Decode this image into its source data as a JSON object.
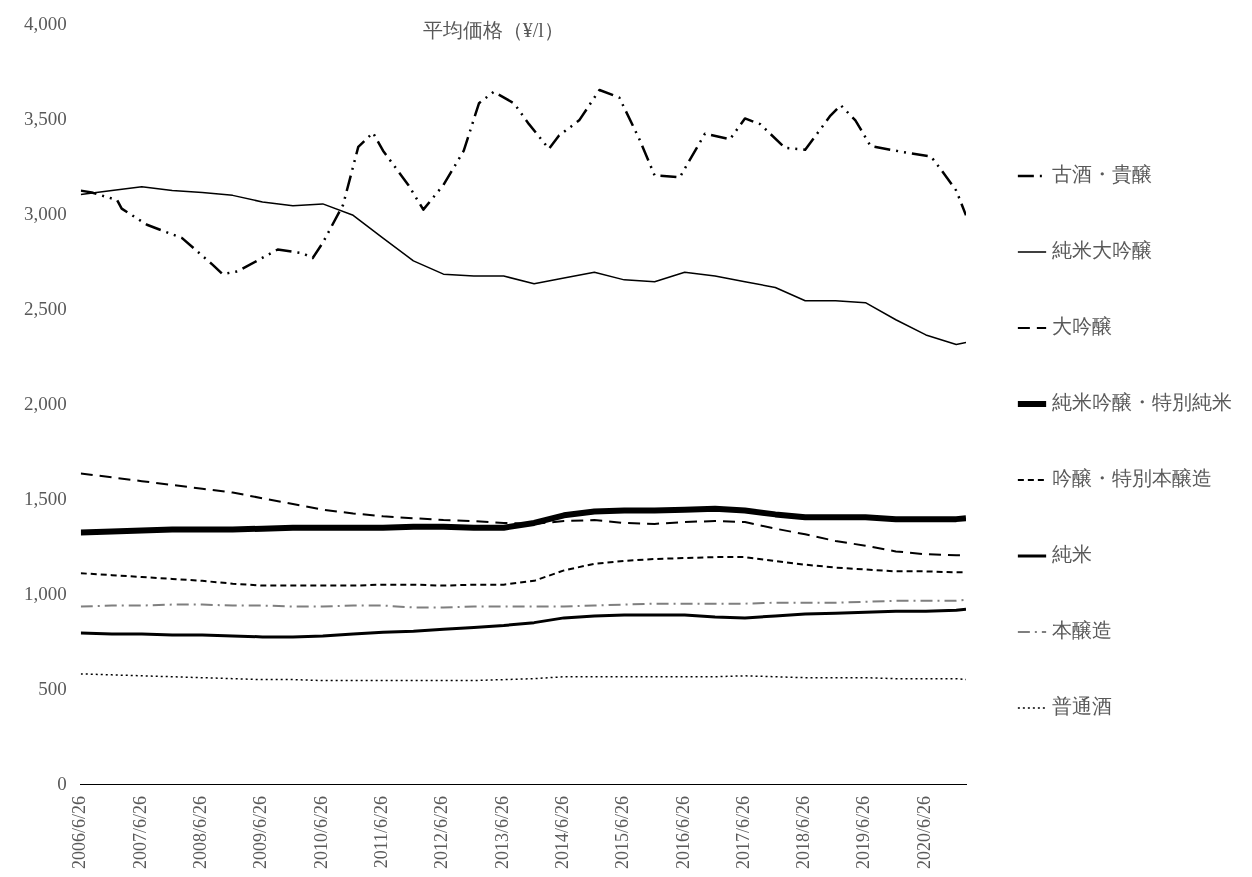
{
  "chart_data": {
    "type": "line",
    "title": "平均価格（¥/l）",
    "x": [
      "2006-06-26",
      "2007-01",
      "2007-07",
      "2008-01",
      "2008-07",
      "2009-01",
      "2009-07",
      "2010-01",
      "2010-07",
      "2011-01",
      "2011-07",
      "2012-01",
      "2012-07",
      "2013-01",
      "2013-07",
      "2014-01",
      "2014-07",
      "2015-01",
      "2015-07",
      "2016-01",
      "2016-07",
      "2017-01",
      "2017-07",
      "2018-01",
      "2018-07",
      "2019-01",
      "2019-07",
      "2020-01",
      "2020-07",
      "2021-01",
      "2021-03"
    ],
    "series": [
      {
        "name": "古酒・貴醸",
        "color": "#000000",
        "line_style": "dashdotdot",
        "x": [
          "2006-06-26",
          "2006-09",
          "2007-02",
          "2007-03",
          "2007-08",
          "2008-03",
          "2008-09",
          "2008-11",
          "2009-02",
          "2009-10",
          "2010-03",
          "2010-05",
          "2010-07",
          "2010-11",
          "2011-02",
          "2011-05",
          "2011-07",
          "2011-12",
          "2012-03",
          "2012-05",
          "2012-07",
          "2012-11",
          "2013-02",
          "2013-05",
          "2013-09",
          "2013-12",
          "2014-04",
          "2014-06",
          "2014-10",
          "2015-02",
          "2015-06",
          "2015-10",
          "2016-01",
          "2016-06",
          "2016-11",
          "2017-04",
          "2017-07",
          "2017-10",
          "2018-03",
          "2018-07",
          "2018-12",
          "2019-02",
          "2019-05",
          "2019-08",
          "2020-02",
          "2020-08",
          "2020-10",
          "2021-01",
          "2021-03"
        ],
        "values": [
          3130,
          3120,
          3080,
          3035,
          2950,
          2880,
          2740,
          2690,
          2705,
          2820,
          2800,
          2775,
          2855,
          3055,
          3360,
          3435,
          3340,
          3160,
          3030,
          3095,
          3160,
          3340,
          3590,
          3650,
          3590,
          3480,
          3350,
          3420,
          3500,
          3660,
          3620,
          3400,
          3210,
          3200,
          3430,
          3400,
          3510,
          3480,
          3355,
          3345,
          3525,
          3580,
          3500,
          3365,
          3335,
          3310,
          3240,
          3130,
          3000
        ]
      },
      {
        "name": "純米大吟醸",
        "color": "#000000",
        "line_style": "solid",
        "values": [
          3110,
          3130,
          3150,
          3130,
          3120,
          3105,
          3070,
          3050,
          3060,
          3000,
          2880,
          2760,
          2690,
          2680,
          2680,
          2640,
          2670,
          2700,
          2660,
          2650,
          2700,
          2680,
          2650,
          2620,
          2550,
          2550,
          2540,
          2450,
          2370,
          2320,
          2330
        ]
      },
      {
        "name": "大吟醸",
        "color": "#000000",
        "line_style": "dashed",
        "values": [
          1640,
          1620,
          1600,
          1580,
          1560,
          1540,
          1510,
          1480,
          1450,
          1430,
          1415,
          1405,
          1395,
          1390,
          1380,
          1375,
          1390,
          1395,
          1380,
          1375,
          1385,
          1390,
          1385,
          1350,
          1320,
          1285,
          1260,
          1230,
          1215,
          1210,
          1210
        ]
      },
      {
        "name": "純米吟醸・特別純米",
        "color": "#000000",
        "line_style": "solid",
        "values": [
          1330,
          1335,
          1340,
          1345,
          1345,
          1345,
          1350,
          1355,
          1355,
          1355,
          1355,
          1360,
          1360,
          1355,
          1355,
          1380,
          1420,
          1440,
          1445,
          1445,
          1450,
          1455,
          1445,
          1425,
          1410,
          1410,
          1410,
          1400,
          1400,
          1400,
          1405
        ]
      },
      {
        "name": "吟醸・特別本醸造",
        "color": "#000000",
        "line_style": "dashed_short",
        "values": [
          1115,
          1105,
          1095,
          1085,
          1075,
          1060,
          1050,
          1050,
          1050,
          1050,
          1055,
          1055,
          1050,
          1055,
          1055,
          1075,
          1130,
          1165,
          1180,
          1190,
          1195,
          1200,
          1200,
          1180,
          1160,
          1145,
          1135,
          1125,
          1125,
          1120,
          1120
        ]
      },
      {
        "name": "純米",
        "color": "#000000",
        "line_style": "solid",
        "values": [
          800,
          795,
          795,
          790,
          790,
          785,
          780,
          780,
          785,
          795,
          805,
          810,
          820,
          830,
          840,
          855,
          880,
          890,
          895,
          895,
          895,
          885,
          880,
          890,
          900,
          905,
          910,
          915,
          915,
          920,
          925
        ]
      },
      {
        "name": "本醸造",
        "color": "#7f7f7f",
        "line_style": "dashdot",
        "values": [
          940,
          945,
          945,
          950,
          950,
          945,
          945,
          940,
          940,
          945,
          945,
          935,
          935,
          940,
          940,
          940,
          940,
          945,
          950,
          955,
          955,
          955,
          955,
          960,
          960,
          960,
          965,
          970,
          970,
          970,
          975
        ]
      },
      {
        "name": "普通酒",
        "color": "#000000",
        "line_style": "dotted",
        "values": [
          585,
          580,
          575,
          570,
          565,
          560,
          555,
          555,
          550,
          550,
          550,
          550,
          550,
          550,
          555,
          560,
          570,
          570,
          570,
          570,
          570,
          570,
          575,
          570,
          565,
          565,
          565,
          560,
          560,
          560,
          555
        ]
      }
    ],
    "xlim": [
      "2006-06-26",
      "2021-03"
    ],
    "xticks": [
      {
        "value": "2006-06-26",
        "label": "2006/6/26"
      },
      {
        "value": "2007-06-26",
        "label": "2007/6/26"
      },
      {
        "value": "2008-06-26",
        "label": "2008/6/26"
      },
      {
        "value": "2009-06-26",
        "label": "2009/6/26"
      },
      {
        "value": "2010-06-26",
        "label": "2010/6/26"
      },
      {
        "value": "2011-06-26",
        "label": "2011/6/26"
      },
      {
        "value": "2012-06-26",
        "label": "2012/6/26"
      },
      {
        "value": "2013-06-26",
        "label": "2013/6/26"
      },
      {
        "value": "2014-06-26",
        "label": "2014/6/26"
      },
      {
        "value": "2015-06-26",
        "label": "2015/6/26"
      },
      {
        "value": "2016-06-26",
        "label": "2016/6/26"
      },
      {
        "value": "2017-06-26",
        "label": "2017/6/26"
      },
      {
        "value": "2018-06-26",
        "label": "2018/6/26"
      },
      {
        "value": "2019-06-26",
        "label": "2019/6/26"
      },
      {
        "value": "2020-06-26",
        "label": "2020/6/26"
      }
    ],
    "ylim": [
      0,
      4000
    ],
    "yticks": [
      0,
      {
        "value": 500,
        "label": "500"
      },
      {
        "value": 1000,
        "label": "1,000"
      },
      {
        "value": 1500,
        "label": "1,500"
      },
      {
        "value": 2000,
        "label": "2,000"
      },
      {
        "value": 2500,
        "label": "2,500"
      },
      {
        "value": 3000,
        "label": "3,000"
      },
      {
        "value": 3500,
        "label": "3,500"
      },
      {
        "value": 4000,
        "label": "4,000"
      }
    ],
    "grid": false,
    "legend": "right",
    "marker": "none"
  }
}
